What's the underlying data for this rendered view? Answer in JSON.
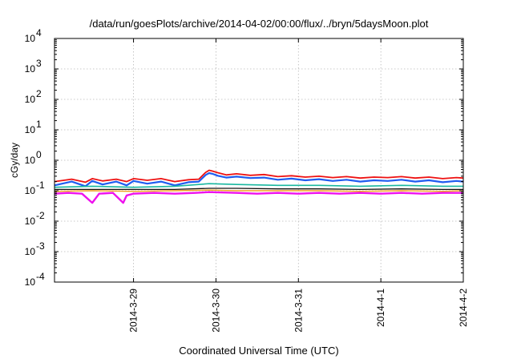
{
  "chart_data": {
    "type": "line",
    "title": "/data/run/goesPlots/archive/2014-04-02/00:00/flux/../bryn/5daysMoon.plot",
    "xlabel": "Coordinated Universal Time (UTC)",
    "ylabel": "cGy/day",
    "yscale": "log",
    "ylim": [
      0.0001,
      10000
    ],
    "y_ticks": [
      {
        "value": 0.0001,
        "base": "10",
        "exp": "-4"
      },
      {
        "value": 0.001,
        "base": "10",
        "exp": "-3"
      },
      {
        "value": 0.01,
        "base": "10",
        "exp": "-2"
      },
      {
        "value": 0.1,
        "base": "10",
        "exp": "-1"
      },
      {
        "value": 1,
        "base": "10",
        "exp": "0"
      },
      {
        "value": 10,
        "base": "10",
        "exp": "1"
      },
      {
        "value": 100,
        "base": "10",
        "exp": "2"
      },
      {
        "value": 1000,
        "base": "10",
        "exp": "3"
      },
      {
        "value": 10000,
        "base": "10",
        "exp": "4"
      }
    ],
    "xlim": [
      "2014-03-28T01:00",
      "2014-04-02T00:00"
    ],
    "x_ticks": [
      "2014-3-29",
      "2014-3-30",
      "2014-3-31",
      "2014-4-1",
      "2014-4-2"
    ],
    "grid": true,
    "series": [
      {
        "color": "#ee1111",
        "width": 1.8,
        "x": [
          "2014-03-28T01:00",
          "2014-03-28T06:00",
          "2014-03-28T10:00",
          "2014-03-28T12:00",
          "2014-03-28T15:00",
          "2014-03-28T19:00",
          "2014-03-28T22:00",
          "2014-03-29T00:00",
          "2014-03-29T04:00",
          "2014-03-29T08:00",
          "2014-03-29T12:00",
          "2014-03-29T16:00",
          "2014-03-29T19:00",
          "2014-03-29T21:00",
          "2014-03-29T22:00",
          "2014-03-29T23:00",
          "2014-03-30T00:30",
          "2014-03-30T03:00",
          "2014-03-30T06:00",
          "2014-03-30T10:00",
          "2014-03-30T14:00",
          "2014-03-30T18:00",
          "2014-03-30T22:00",
          "2014-03-31T02:00",
          "2014-03-31T06:00",
          "2014-03-31T10:00",
          "2014-03-31T14:00",
          "2014-03-31T18:00",
          "2014-03-31T22:00",
          "2014-04-01T02:00",
          "2014-04-01T06:00",
          "2014-04-01T10:00",
          "2014-04-01T14:00",
          "2014-04-01T18:00",
          "2014-04-01T22:00",
          "2014-04-02T00:00"
        ],
        "y": [
          0.2,
          0.24,
          0.19,
          0.25,
          0.21,
          0.24,
          0.2,
          0.25,
          0.22,
          0.25,
          0.2,
          0.23,
          0.24,
          0.4,
          0.47,
          0.44,
          0.39,
          0.33,
          0.36,
          0.32,
          0.34,
          0.29,
          0.31,
          0.28,
          0.3,
          0.27,
          0.29,
          0.26,
          0.28,
          0.27,
          0.29,
          0.26,
          0.28,
          0.25,
          0.27,
          0.26
        ]
      },
      {
        "color": "#1f5cf0",
        "width": 2.2,
        "x": [
          "2014-03-28T01:00",
          "2014-03-28T06:00",
          "2014-03-28T10:00",
          "2014-03-28T12:00",
          "2014-03-28T15:00",
          "2014-03-28T19:00",
          "2014-03-28T22:00",
          "2014-03-29T00:00",
          "2014-03-29T04:00",
          "2014-03-29T08:00",
          "2014-03-29T12:00",
          "2014-03-29T16:00",
          "2014-03-29T19:00",
          "2014-03-29T21:00",
          "2014-03-29T22:00",
          "2014-03-29T23:00",
          "2014-03-30T00:30",
          "2014-03-30T03:00",
          "2014-03-30T06:00",
          "2014-03-30T10:00",
          "2014-03-30T14:00",
          "2014-03-30T18:00",
          "2014-03-30T22:00",
          "2014-03-31T02:00",
          "2014-03-31T06:00",
          "2014-03-31T10:00",
          "2014-03-31T14:00",
          "2014-03-31T18:00",
          "2014-03-31T22:00",
          "2014-04-01T02:00",
          "2014-04-01T06:00",
          "2014-04-01T10:00",
          "2014-04-01T14:00",
          "2014-04-01T18:00",
          "2014-04-01T22:00",
          "2014-04-02T00:00"
        ],
        "y": [
          0.15,
          0.2,
          0.14,
          0.21,
          0.16,
          0.2,
          0.15,
          0.21,
          0.17,
          0.2,
          0.15,
          0.19,
          0.2,
          0.33,
          0.38,
          0.36,
          0.31,
          0.27,
          0.29,
          0.26,
          0.27,
          0.23,
          0.25,
          0.22,
          0.24,
          0.21,
          0.23,
          0.2,
          0.22,
          0.21,
          0.23,
          0.2,
          0.22,
          0.19,
          0.21,
          0.2
        ]
      },
      {
        "color": "#19b8a0",
        "width": 1.6,
        "x": [
          "2014-03-28T01:00",
          "2014-03-28T12:00",
          "2014-03-29T00:00",
          "2014-03-29T12:00",
          "2014-03-29T22:00",
          "2014-03-30T06:00",
          "2014-03-30T18:00",
          "2014-03-31T06:00",
          "2014-03-31T18:00",
          "2014-04-01T06:00",
          "2014-04-01T18:00",
          "2014-04-02T00:00"
        ],
        "y": [
          0.13,
          0.14,
          0.13,
          0.14,
          0.17,
          0.16,
          0.15,
          0.15,
          0.14,
          0.15,
          0.14,
          0.14
        ]
      },
      {
        "color": "#111111",
        "width": 1.3,
        "x": [
          "2014-03-28T01:00",
          "2014-03-28T12:00",
          "2014-03-29T00:00",
          "2014-03-29T12:00",
          "2014-03-29T22:00",
          "2014-03-30T06:00",
          "2014-03-30T18:00",
          "2014-03-31T06:00",
          "2014-03-31T18:00",
          "2014-04-01T06:00",
          "2014-04-01T18:00",
          "2014-04-02T00:00"
        ],
        "y": [
          0.11,
          0.11,
          0.11,
          0.11,
          0.12,
          0.12,
          0.115,
          0.115,
          0.11,
          0.115,
          0.11,
          0.11
        ]
      },
      {
        "color": "#f0a020",
        "width": 1.4,
        "x": [
          "2014-03-28T01:00",
          "2014-03-28T12:00",
          "2014-03-29T00:00",
          "2014-03-29T12:00",
          "2014-03-29T22:00",
          "2014-03-30T06:00",
          "2014-03-30T18:00",
          "2014-03-31T06:00",
          "2014-03-31T18:00",
          "2014-04-01T06:00",
          "2014-04-01T18:00",
          "2014-04-02T00:00"
        ],
        "y": [
          0.095,
          0.1,
          0.095,
          0.1,
          0.105,
          0.1,
          0.1,
          0.1,
          0.095,
          0.1,
          0.095,
          0.1
        ]
      },
      {
        "color": "#ee11ee",
        "width": 2.4,
        "x": [
          "2014-03-28T01:00",
          "2014-03-28T05:00",
          "2014-03-28T09:00",
          "2014-03-28T12:00",
          "2014-03-28T14:00",
          "2014-03-28T18:00",
          "2014-03-28T21:00",
          "2014-03-28T22:00",
          "2014-03-29T00:00",
          "2014-03-29T06:00",
          "2014-03-29T12:00",
          "2014-03-29T18:00",
          "2014-03-29T22:00",
          "2014-03-30T06:00",
          "2014-03-30T12:00",
          "2014-03-30T18:00",
          "2014-03-31T00:00",
          "2014-03-31T06:00",
          "2014-03-31T12:00",
          "2014-03-31T18:00",
          "2014-04-01T00:00",
          "2014-04-01T06:00",
          "2014-04-01T12:00",
          "2014-04-01T18:00",
          "2014-04-02T00:00"
        ],
        "y": [
          0.08,
          0.085,
          0.08,
          0.04,
          0.08,
          0.085,
          0.04,
          0.07,
          0.08,
          0.085,
          0.08,
          0.085,
          0.09,
          0.085,
          0.08,
          0.085,
          0.08,
          0.085,
          0.08,
          0.085,
          0.08,
          0.085,
          0.08,
          0.085,
          0.085
        ]
      }
    ]
  }
}
